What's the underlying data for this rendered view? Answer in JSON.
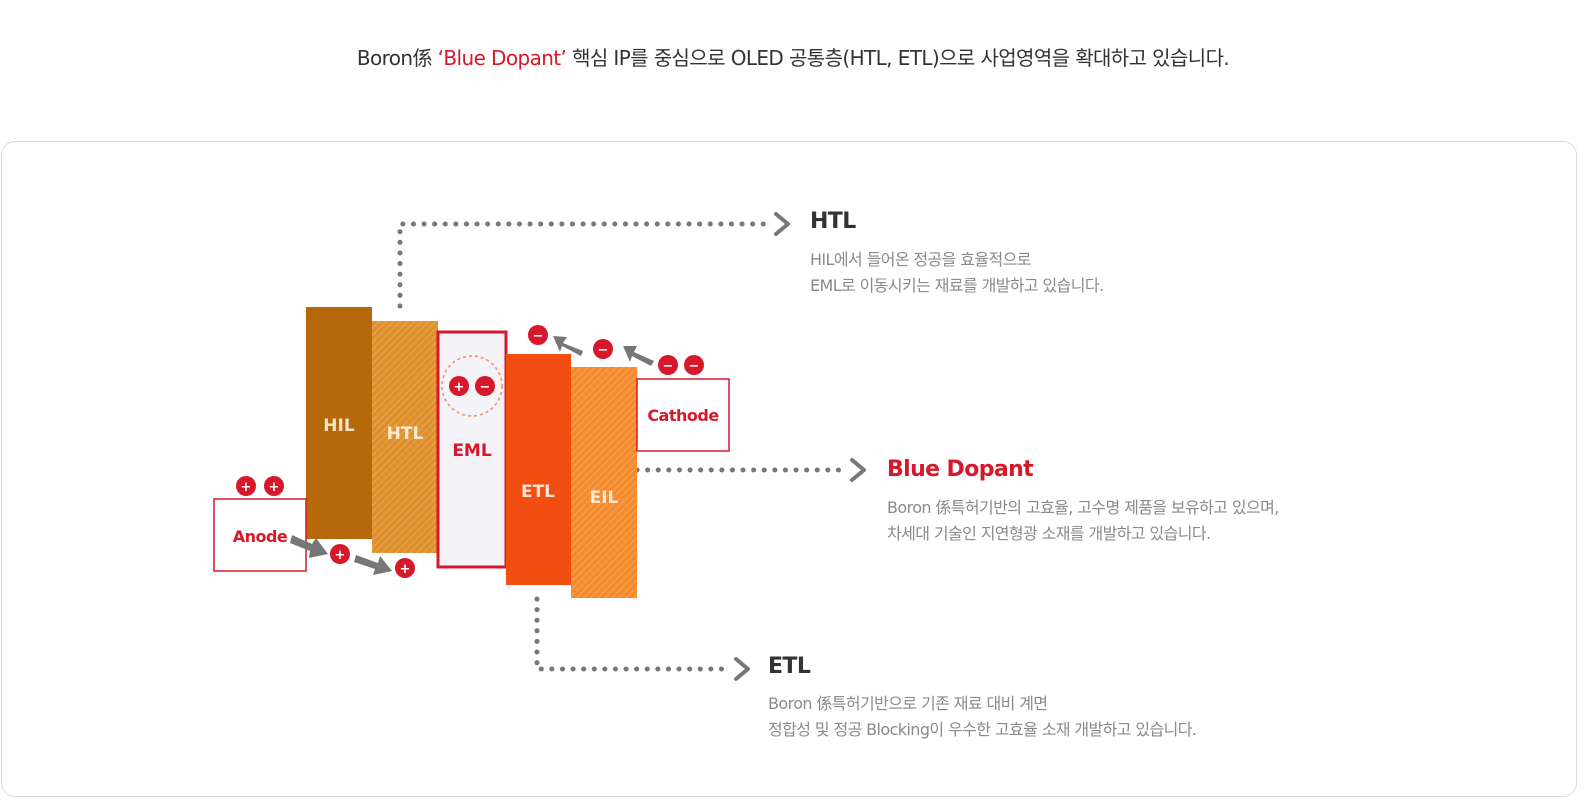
{
  "headline": {
    "prefix": "Boron係 ",
    "highlight": "‘Blue Dopant’",
    "suffix": " 핵심 IP를 중심으로 OLED 공통층(HTL, ETL)으로 사업영역을 확대하고 있습니다."
  },
  "colors": {
    "accent_red": "#d7182a",
    "hil": "#b5690a",
    "htl": "#e0902c",
    "eml": "#f4f3f8",
    "etl": "#f24e12",
    "eil": "#f58a2e",
    "arrow_gray": "#777777",
    "text_dark": "#333333",
    "text_gray": "#8a8a8a"
  },
  "layers": [
    {
      "name": "HIL"
    },
    {
      "name": "HTL"
    },
    {
      "name": "EML"
    },
    {
      "name": "ETL"
    },
    {
      "name": "EIL"
    }
  ],
  "electrodes": {
    "anode": "Anode",
    "cathode": "Cathode"
  },
  "charges": {
    "hole": "+",
    "electron": "−"
  },
  "descriptions": {
    "htl": {
      "title": "HTL",
      "lines": [
        "HIL에서 들어온 정공을 효율적으로",
        "EML로 이동시키는 재료를 개발하고 있습니다."
      ]
    },
    "blue_dopant": {
      "title": "Blue Dopant",
      "lines": [
        "Boron 係특허기반의 고효율, 고수명 제품을 보유하고 있으며,",
        "차세대 기술인 지연형광 소재를 개발하고 있습니다."
      ]
    },
    "etl": {
      "title": "ETL",
      "lines": [
        "Boron 係특허기반으로 기존 재료 대비 계면",
        "정합성 및 정공 Blocking이 우수한 고효율 소재 개발하고 있습니다."
      ]
    }
  }
}
